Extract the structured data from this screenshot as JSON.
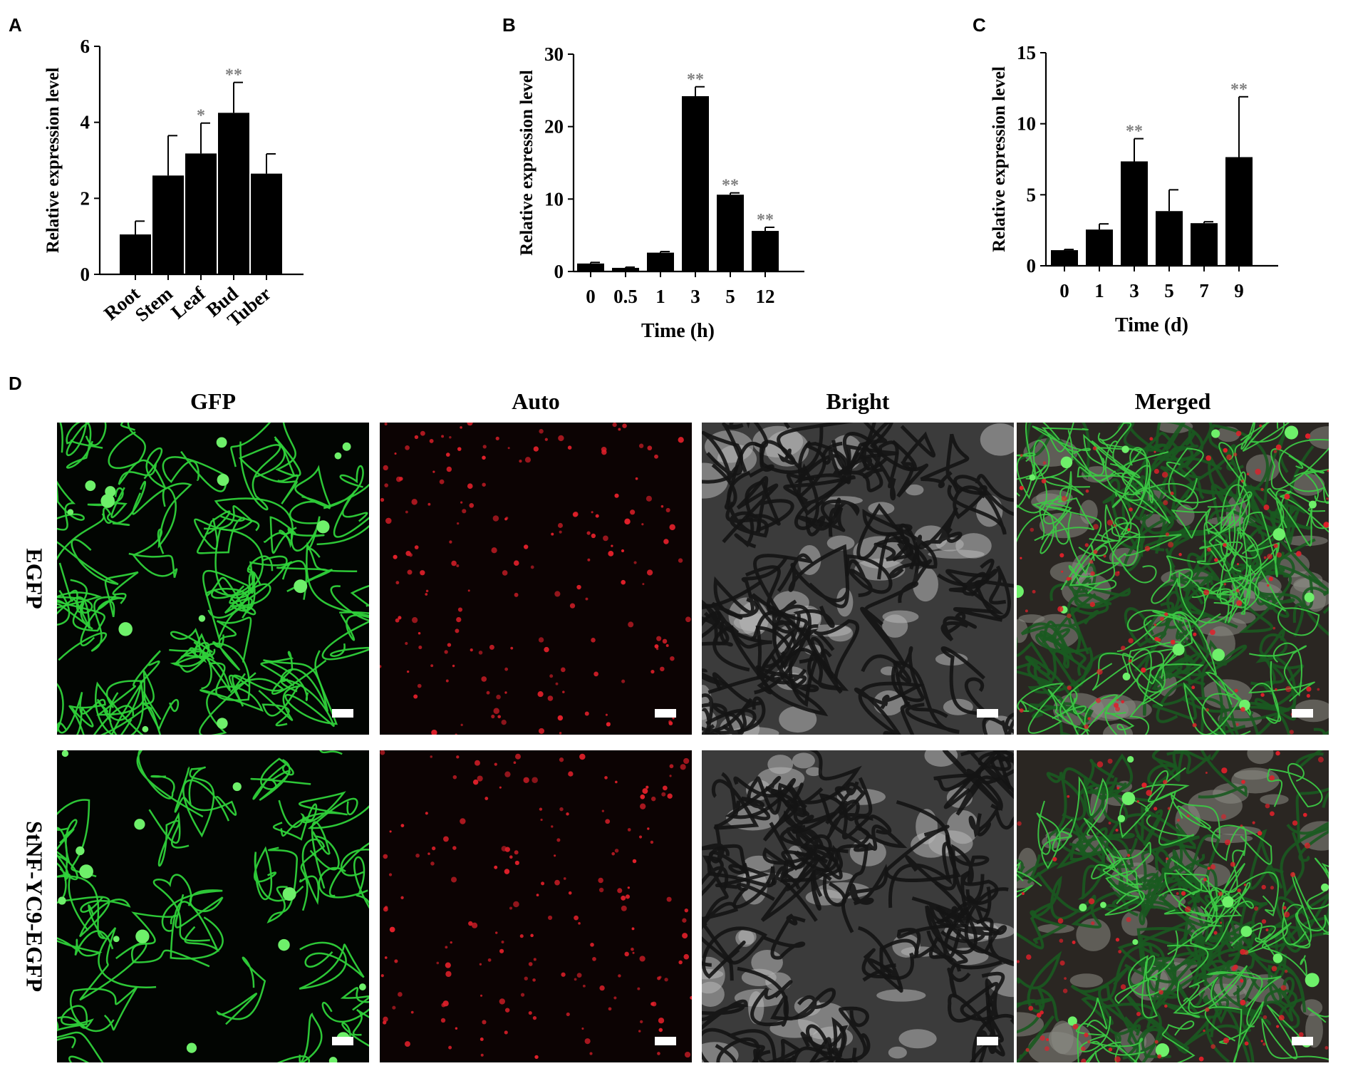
{
  "panels": {
    "a": "A",
    "b": "B",
    "c": "C",
    "d": "D"
  },
  "chart_data": [
    {
      "type": "bar",
      "panel": "A",
      "categories": [
        "Root",
        "Stem",
        "Leaf",
        "Bud",
        "Tuber"
      ],
      "values": [
        1.05,
        2.6,
        3.18,
        4.25,
        2.65
      ],
      "errors": [
        0.35,
        1.05,
        0.8,
        0.8,
        0.52
      ],
      "significance": [
        "",
        "",
        "*",
        "**",
        ""
      ],
      "xlabel": "",
      "ylabel": "Relative expression level",
      "ylim": [
        0,
        6
      ],
      "yticks": [
        "0",
        "2",
        "4",
        "6"
      ],
      "grid": false
    },
    {
      "type": "bar",
      "panel": "B",
      "categories": [
        "0",
        "0.5",
        "1",
        "3",
        "5",
        "12"
      ],
      "values": [
        1.1,
        0.5,
        2.6,
        24.2,
        10.6,
        5.6
      ],
      "errors": [
        0.15,
        0.1,
        0.15,
        1.3,
        0.25,
        0.5
      ],
      "significance": [
        "",
        "",
        "",
        "**",
        "**",
        "**"
      ],
      "xlabel": "Time (h)",
      "ylabel": "Relative expression level",
      "ylim": [
        0,
        30
      ],
      "yticks": [
        "0",
        "10",
        "20",
        "30"
      ],
      "grid": false
    },
    {
      "type": "bar",
      "panel": "C",
      "categories": [
        "0",
        "1",
        "3",
        "5",
        "7",
        "9"
      ],
      "values": [
        1.1,
        2.55,
        7.35,
        3.85,
        3.0,
        7.65
      ],
      "errors": [
        0.05,
        0.4,
        1.6,
        1.5,
        0.1,
        4.25
      ],
      "significance": [
        "",
        "",
        "**",
        "",
        "",
        "**"
      ],
      "xlabel": "Time (d)",
      "ylabel": "Relative expression level",
      "ylim": [
        0,
        15
      ],
      "yticks": [
        "0",
        "5",
        "10",
        "15"
      ],
      "grid": false
    }
  ],
  "micrographs": {
    "columns": [
      "GFP",
      "Auto",
      "Bright",
      "Merged"
    ],
    "rows": [
      "EGFP",
      "StNF-YC9-EGFP"
    ]
  },
  "colors": {
    "bars": "#000000",
    "significance": "#808080",
    "gfp": "#2fd23a",
    "auto": "#e0202a",
    "bright": "#8a8a8a"
  }
}
